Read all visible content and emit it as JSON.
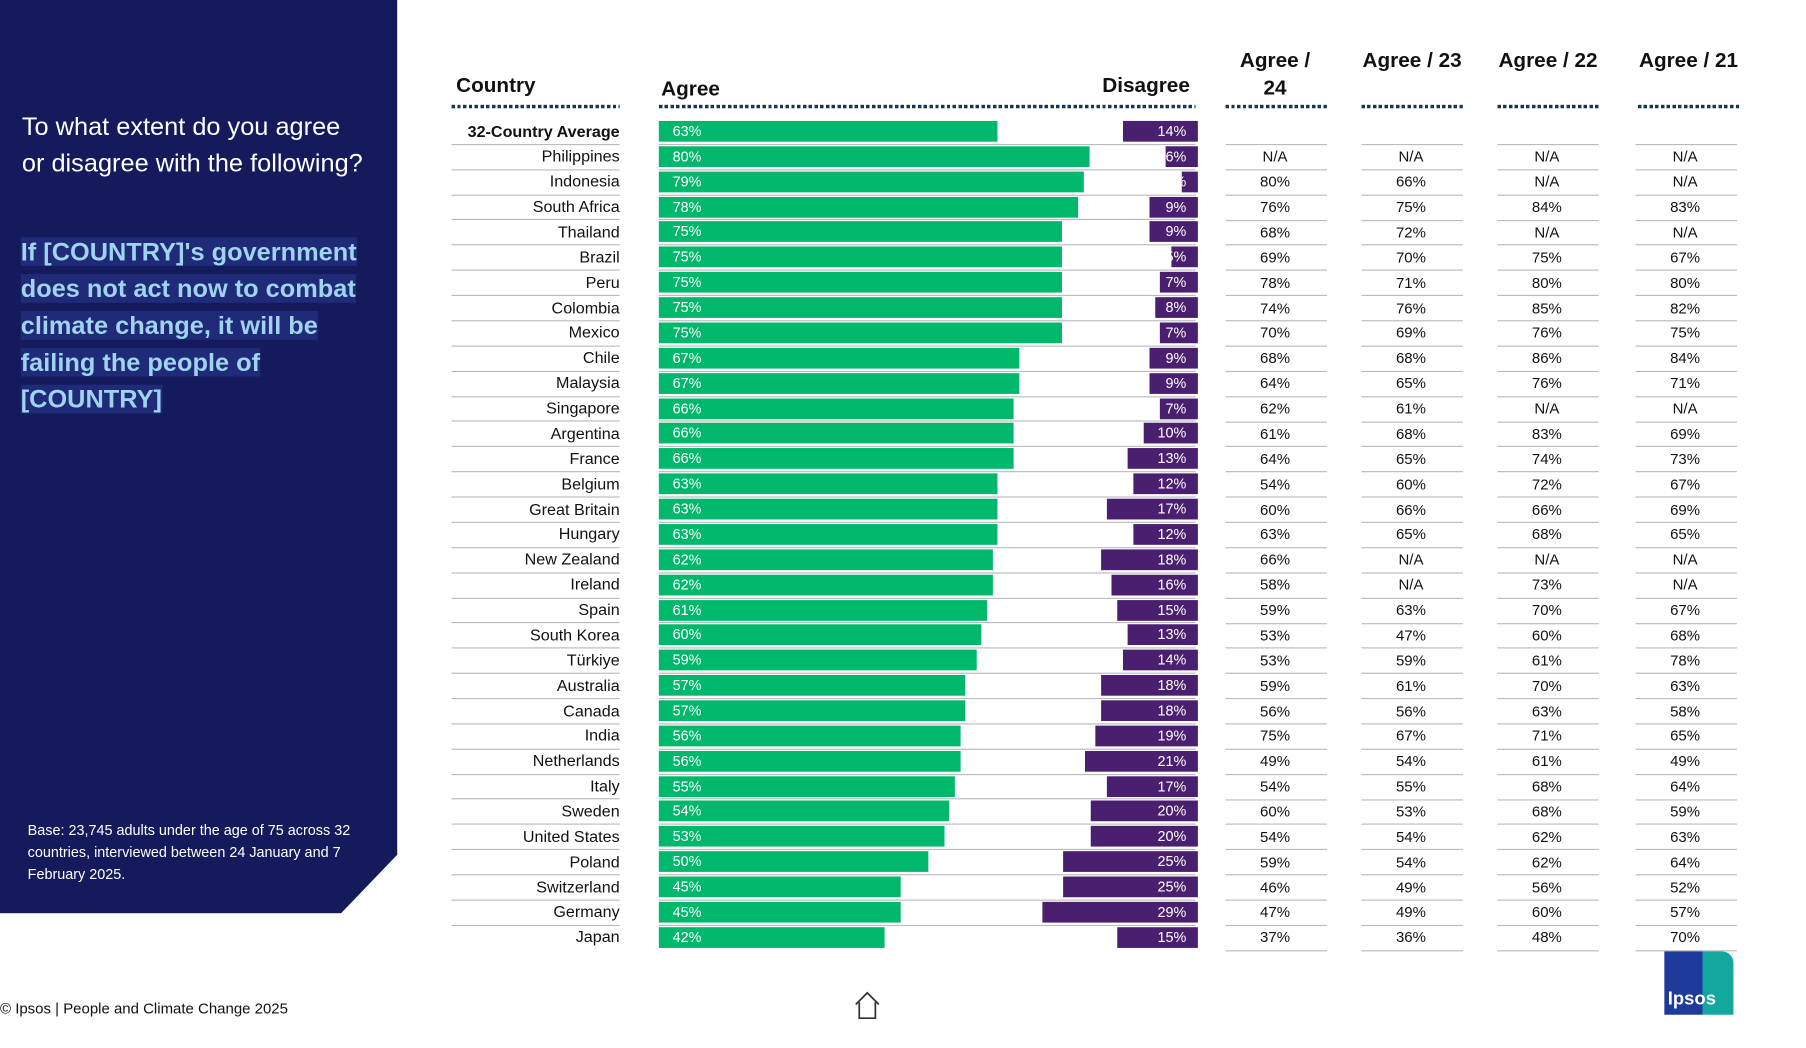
{
  "question": "To what extent do you agree or disagree with the following?",
  "statement": "If [COUNTRY]'s government does not act now to combat climate change, it will be failing the people of [COUNTRY]",
  "statement_lines": [
    "If [COUNTRY]'s government",
    "does not act now to combat",
    "climate change, it will be",
    "failing the people of",
    "[COUNTRY]"
  ],
  "base_note": "Base: 23,745 adults under the age of 75 across 32 countries, interviewed between 24 January and 7 February 2025.",
  "footer": "© Ipsos | People and Climate Change 2025",
  "logo_text": "Ipsos",
  "colors": {
    "agree": "#00b86c",
    "disagree": "#4b1f6f",
    "panel": "#141a5c"
  },
  "chart_data": {
    "type": "bar",
    "headers": {
      "country": "Country",
      "agree": "Agree",
      "disagree": "Disagree",
      "y24": "Agree / 24",
      "y23": "Agree / 23",
      "y22": "Agree / 22",
      "y21": "Agree / 21"
    },
    "xlim": [
      0,
      100
    ],
    "rows": [
      {
        "country": "32-Country Average",
        "agree": 63,
        "disagree": 14,
        "a24": "",
        "a23": "",
        "a22": "",
        "a21": ""
      },
      {
        "country": "Philippines",
        "agree": 80,
        "disagree": 6,
        "a24": "N/A",
        "a23": "N/A",
        "a22": "N/A",
        "a21": "N/A"
      },
      {
        "country": "Indonesia",
        "agree": 79,
        "disagree": 3,
        "a24": "80%",
        "a23": "66%",
        "a22": "N/A",
        "a21": "N/A"
      },
      {
        "country": "South Africa",
        "agree": 78,
        "disagree": 9,
        "a24": "76%",
        "a23": "75%",
        "a22": "84%",
        "a21": "83%"
      },
      {
        "country": "Thailand",
        "agree": 75,
        "disagree": 9,
        "a24": "68%",
        "a23": "72%",
        "a22": "N/A",
        "a21": "N/A"
      },
      {
        "country": "Brazil",
        "agree": 75,
        "disagree": 5,
        "a24": "69%",
        "a23": "70%",
        "a22": "75%",
        "a21": "67%"
      },
      {
        "country": "Peru",
        "agree": 75,
        "disagree": 7,
        "a24": "78%",
        "a23": "71%",
        "a22": "80%",
        "a21": "80%"
      },
      {
        "country": "Colombia",
        "agree": 75,
        "disagree": 8,
        "a24": "74%",
        "a23": "76%",
        "a22": "85%",
        "a21": "82%"
      },
      {
        "country": "Mexico",
        "agree": 75,
        "disagree": 7,
        "a24": "70%",
        "a23": "69%",
        "a22": "76%",
        "a21": "75%"
      },
      {
        "country": "Chile",
        "agree": 67,
        "disagree": 9,
        "a24": "68%",
        "a23": "68%",
        "a22": "86%",
        "a21": "84%"
      },
      {
        "country": "Malaysia",
        "agree": 67,
        "disagree": 9,
        "a24": "64%",
        "a23": "65%",
        "a22": "76%",
        "a21": "71%"
      },
      {
        "country": "Singapore",
        "agree": 66,
        "disagree": 7,
        "a24": "62%",
        "a23": "61%",
        "a22": "N/A",
        "a21": "N/A"
      },
      {
        "country": "Argentina",
        "agree": 66,
        "disagree": 10,
        "a24": "61%",
        "a23": "68%",
        "a22": "83%",
        "a21": "69%"
      },
      {
        "country": "France",
        "agree": 66,
        "disagree": 13,
        "a24": "64%",
        "a23": "65%",
        "a22": "74%",
        "a21": "73%"
      },
      {
        "country": "Belgium",
        "agree": 63,
        "disagree": 12,
        "a24": "54%",
        "a23": "60%",
        "a22": "72%",
        "a21": "67%"
      },
      {
        "country": "Great Britain",
        "agree": 63,
        "disagree": 17,
        "a24": "60%",
        "a23": "66%",
        "a22": "66%",
        "a21": "69%"
      },
      {
        "country": "Hungary",
        "agree": 63,
        "disagree": 12,
        "a24": "63%",
        "a23": "65%",
        "a22": "68%",
        "a21": "65%"
      },
      {
        "country": "New Zealand",
        "agree": 62,
        "disagree": 18,
        "a24": "66%",
        "a23": "N/A",
        "a22": "N/A",
        "a21": "N/A"
      },
      {
        "country": "Ireland",
        "agree": 62,
        "disagree": 16,
        "a24": "58%",
        "a23": "N/A",
        "a22": "73%",
        "a21": "N/A"
      },
      {
        "country": "Spain",
        "agree": 61,
        "disagree": 15,
        "a24": "59%",
        "a23": "63%",
        "a22": "70%",
        "a21": "67%"
      },
      {
        "country": "South Korea",
        "agree": 60,
        "disagree": 13,
        "a24": "53%",
        "a23": "47%",
        "a22": "60%",
        "a21": "68%"
      },
      {
        "country": "Türkiye",
        "agree": 59,
        "disagree": 14,
        "a24": "53%",
        "a23": "59%",
        "a22": "61%",
        "a21": "78%"
      },
      {
        "country": "Australia",
        "agree": 57,
        "disagree": 18,
        "a24": "59%",
        "a23": "61%",
        "a22": "70%",
        "a21": "63%"
      },
      {
        "country": "Canada",
        "agree": 57,
        "disagree": 18,
        "a24": "56%",
        "a23": "56%",
        "a22": "63%",
        "a21": "58%"
      },
      {
        "country": "India",
        "agree": 56,
        "disagree": 19,
        "a24": "75%",
        "a23": "67%",
        "a22": "71%",
        "a21": "65%"
      },
      {
        "country": "Netherlands",
        "agree": 56,
        "disagree": 21,
        "a24": "49%",
        "a23": "54%",
        "a22": "61%",
        "a21": "49%"
      },
      {
        "country": "Italy",
        "agree": 55,
        "disagree": 17,
        "a24": "54%",
        "a23": "55%",
        "a22": "68%",
        "a21": "64%"
      },
      {
        "country": "Sweden",
        "agree": 54,
        "disagree": 20,
        "a24": "60%",
        "a23": "53%",
        "a22": "68%",
        "a21": "59%"
      },
      {
        "country": "United States",
        "agree": 53,
        "disagree": 20,
        "a24": "54%",
        "a23": "54%",
        "a22": "62%",
        "a21": "63%"
      },
      {
        "country": "Poland",
        "agree": 50,
        "disagree": 25,
        "a24": "59%",
        "a23": "54%",
        "a22": "62%",
        "a21": "64%"
      },
      {
        "country": "Switzerland",
        "agree": 45,
        "disagree": 25,
        "a24": "46%",
        "a23": "49%",
        "a22": "56%",
        "a21": "52%"
      },
      {
        "country": "Germany",
        "agree": 45,
        "disagree": 29,
        "a24": "47%",
        "a23": "49%",
        "a22": "60%",
        "a21": "57%"
      },
      {
        "country": "Japan",
        "agree": 42,
        "disagree": 15,
        "a24": "37%",
        "a23": "36%",
        "a22": "48%",
        "a21": "70%"
      }
    ]
  }
}
